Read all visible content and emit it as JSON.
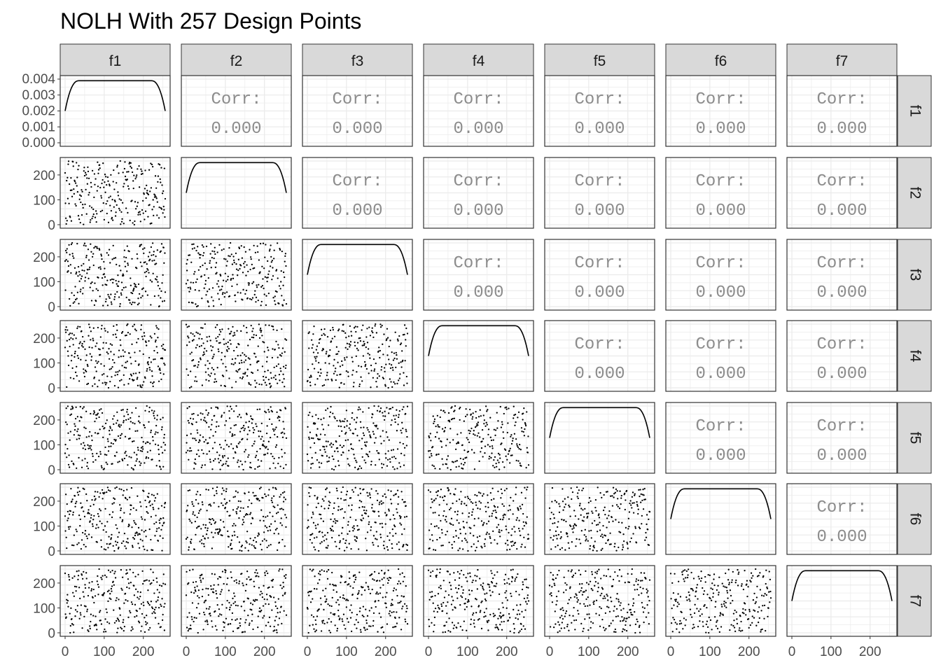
{
  "chart_data": {
    "type": "scatter",
    "title": "NOLH With 257 Design Points",
    "variables": [
      "f1",
      "f2",
      "f3",
      "f4",
      "f5",
      "f6",
      "f7"
    ],
    "n_points": 257,
    "diagonal": {
      "type": "density",
      "ylim": [
        0,
        0.004
      ],
      "y_ticks": [
        "0.004",
        "0.003",
        "0.002",
        "0.001",
        "0.000"
      ],
      "plateau_density": 0.0039,
      "edge_density": 0.002
    },
    "scatter_axes": {
      "xlim": [
        0,
        256
      ],
      "ylim": [
        0,
        256
      ],
      "ticks": [
        0,
        100,
        200
      ],
      "tick_labels": [
        "0",
        "100",
        "200"
      ]
    },
    "upper_labels": {
      "label": "Corr:",
      "value": "0.000"
    },
    "correlations": [
      {
        "x": "f1",
        "y": "f2",
        "corr": 0.0
      },
      {
        "x": "f1",
        "y": "f3",
        "corr": 0.0
      },
      {
        "x": "f1",
        "y": "f4",
        "corr": 0.0
      },
      {
        "x": "f1",
        "y": "f5",
        "corr": 0.0
      },
      {
        "x": "f1",
        "y": "f6",
        "corr": 0.0
      },
      {
        "x": "f1",
        "y": "f7",
        "corr": 0.0
      },
      {
        "x": "f2",
        "y": "f3",
        "corr": 0.0
      },
      {
        "x": "f2",
        "y": "f4",
        "corr": 0.0
      },
      {
        "x": "f2",
        "y": "f5",
        "corr": 0.0
      },
      {
        "x": "f2",
        "y": "f6",
        "corr": 0.0
      },
      {
        "x": "f2",
        "y": "f7",
        "corr": 0.0
      },
      {
        "x": "f3",
        "y": "f4",
        "corr": 0.0
      },
      {
        "x": "f3",
        "y": "f5",
        "corr": 0.0
      },
      {
        "x": "f3",
        "y": "f6",
        "corr": 0.0
      },
      {
        "x": "f3",
        "y": "f7",
        "corr": 0.0
      },
      {
        "x": "f4",
        "y": "f5",
        "corr": 0.0
      },
      {
        "x": "f4",
        "y": "f6",
        "corr": 0.0
      },
      {
        "x": "f4",
        "y": "f7",
        "corr": 0.0
      },
      {
        "x": "f5",
        "y": "f6",
        "corr": 0.0
      },
      {
        "x": "f5",
        "y": "f7",
        "corr": 0.0
      },
      {
        "x": "f6",
        "y": "f7",
        "corr": 0.0
      }
    ],
    "grid": true,
    "colors": {
      "points": "#000000",
      "strip_fill": "#d9d9d9",
      "panel_border": "#333333",
      "grid": "#ebebeb",
      "corr_text": "#8c8c8c"
    }
  }
}
